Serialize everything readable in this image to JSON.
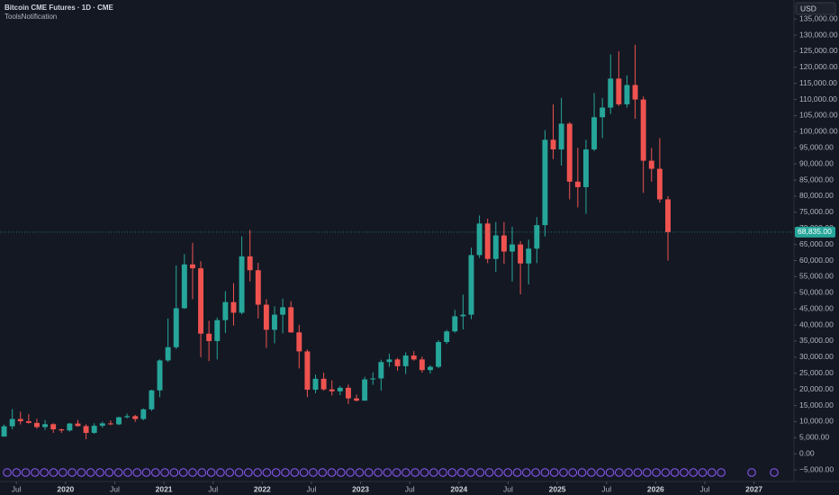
{
  "chart_data": {
    "type": "candlestick",
    "title": "Bitcoin CME Futures · 1D · CME",
    "subtitle": "ToolsNotification",
    "currency": "USD",
    "up_color": "#26a69a",
    "down_color": "#ef5350",
    "x": [
      "2019-05",
      "2019-06",
      "2019-07",
      "2019-08",
      "2019-09",
      "2019-10",
      "2019-11",
      "2019-12",
      "2020-01",
      "2020-02",
      "2020-03",
      "2020-04",
      "2020-05",
      "2020-06",
      "2020-07",
      "2020-08",
      "2020-09",
      "2020-10",
      "2020-11",
      "2020-12",
      "2021-01",
      "2021-02",
      "2021-03",
      "2021-04",
      "2021-05",
      "2021-06",
      "2021-07",
      "2021-08",
      "2021-09",
      "2021-10",
      "2021-11",
      "2021-12",
      "2022-01",
      "2022-02",
      "2022-03",
      "2022-04",
      "2022-05",
      "2022-06",
      "2022-07",
      "2022-08",
      "2022-09",
      "2022-10",
      "2022-11",
      "2022-12",
      "2023-01",
      "2023-02",
      "2023-03",
      "2023-04",
      "2023-05",
      "2023-06",
      "2023-07",
      "2023-08",
      "2023-09",
      "2023-10",
      "2023-11",
      "2023-12",
      "2024-01",
      "2024-02",
      "2024-03",
      "2024-04",
      "2024-05",
      "2024-06",
      "2024-07",
      "2024-08",
      "2024-09",
      "2024-10",
      "2024-11",
      "2024-12",
      "2025-01",
      "2025-02",
      "2025-03",
      "2025-04",
      "2025-05",
      "2025-06",
      "2025-07",
      "2025-08",
      "2025-09",
      "2025-10",
      "2025-11",
      "2025-12",
      "2026-01",
      "2026-02"
    ],
    "open": [
      5350,
      8550,
      10800,
      10100,
      9600,
      8300,
      9200,
      7600,
      7250,
      9400,
      8600,
      6500,
      8700,
      9450,
      9150,
      11350,
      11700,
      10800,
      13800,
      19700,
      29000,
      33100,
      45200,
      58800,
      57600,
      37300,
      35000,
      41500,
      47100,
      43800,
      61300,
      57000,
      46300,
      38500,
      43200,
      45500,
      37700,
      31800,
      19900,
      23300,
      20000,
      19400,
      20500,
      17200,
      16500,
      23100,
      23400,
      28500,
      29300,
      27200,
      30500,
      29300,
      26000,
      27000,
      34700,
      38000,
      42700,
      43200,
      61700,
      71500,
      60500,
      67800,
      62800,
      65000,
      59100,
      63700,
      71000,
      97500,
      94500,
      102500,
      84500,
      82800,
      94500,
      104500,
      107500,
      116500,
      108500,
      114500,
      110000,
      91000,
      88500,
      79000
    ],
    "high": [
      9100,
      13900,
      13100,
      12300,
      10900,
      10500,
      9500,
      7800,
      9600,
      10500,
      9200,
      9500,
      10000,
      10400,
      11500,
      12500,
      12100,
      14100,
      19900,
      29300,
      42000,
      58500,
      62000,
      65500,
      59800,
      41300,
      42300,
      50500,
      53000,
      67500,
      69500,
      59300,
      48000,
      45800,
      48200,
      47400,
      40000,
      32400,
      24600,
      25200,
      22800,
      21100,
      21500,
      18400,
      23900,
      25300,
      29200,
      31100,
      29800,
      31500,
      31900,
      30200,
      27500,
      35300,
      38500,
      44700,
      49400,
      64000,
      74000,
      73000,
      72000,
      72000,
      70500,
      66000,
      66500,
      73500,
      100500,
      108500,
      110500,
      103000,
      95000,
      97500,
      112000,
      110500,
      124000,
      125000,
      117500,
      127000,
      111000,
      95000,
      98000,
      80000
    ],
    "low": [
      5350,
      7600,
      9100,
      9400,
      7800,
      7400,
      6500,
      6500,
      6900,
      8500,
      4500,
      6200,
      8100,
      8900,
      8900,
      11000,
      9900,
      10400,
      13300,
      17600,
      28500,
      32500,
      45000,
      48000,
      30000,
      28800,
      29300,
      37500,
      39800,
      43300,
      53500,
      42000,
      32900,
      34300,
      37400,
      37600,
      26500,
      17600,
      18800,
      19600,
      18100,
      18200,
      15500,
      16300,
      16500,
      21400,
      19600,
      27000,
      25800,
      24800,
      28900,
      25200,
      24900,
      26600,
      34100,
      37600,
      38600,
      41800,
      60800,
      59200,
      56500,
      59000,
      53500,
      49500,
      52600,
      59200,
      67500,
      91500,
      89500,
      79000,
      76500,
      74500,
      94000,
      98000,
      105500,
      108000,
      107500,
      104000,
      81000,
      84500,
      78000,
      60000
    ],
    "close": [
      8550,
      10800,
      10100,
      9600,
      8300,
      9200,
      7600,
      7250,
      9400,
      8600,
      6500,
      8700,
      9450,
      9150,
      11350,
      11700,
      10800,
      13800,
      19700,
      29000,
      33100,
      45200,
      58800,
      57600,
      37300,
      35000,
      41500,
      47100,
      43800,
      61300,
      57000,
      46300,
      38500,
      43200,
      45500,
      37700,
      31800,
      19900,
      23300,
      20000,
      19400,
      20500,
      17200,
      16500,
      23100,
      23400,
      28500,
      29300,
      27200,
      30500,
      29300,
      26000,
      27000,
      34700,
      38000,
      42700,
      43200,
      61700,
      71500,
      60500,
      67800,
      62800,
      65000,
      59100,
      63700,
      71000,
      97500,
      94500,
      102500,
      84500,
      82800,
      94500,
      104500,
      107500,
      116500,
      108500,
      114500,
      110000,
      91000,
      88500,
      79000,
      68835
    ],
    "last_price": {
      "value": 68835,
      "label": "68,835.00"
    },
    "xlim": [
      "2019-05",
      "2027-05"
    ],
    "xticks": [
      {
        "value": "2019-07",
        "label": "Jul"
      },
      {
        "value": "2020-01",
        "label": "2020"
      },
      {
        "value": "2020-07",
        "label": "Jul"
      },
      {
        "value": "2021-01",
        "label": "2021"
      },
      {
        "value": "2021-07",
        "label": "Jul"
      },
      {
        "value": "2022-01",
        "label": "2022"
      },
      {
        "value": "2022-07",
        "label": "Jul"
      },
      {
        "value": "2023-01",
        "label": "2023"
      },
      {
        "value": "2023-07",
        "label": "Jul"
      },
      {
        "value": "2024-01",
        "label": "2024"
      },
      {
        "value": "2024-07",
        "label": "Jul"
      },
      {
        "value": "2025-01",
        "label": "2025"
      },
      {
        "value": "2025-07",
        "label": "Jul"
      },
      {
        "value": "2026-01",
        "label": "2026"
      },
      {
        "value": "2026-07",
        "label": "Jul"
      },
      {
        "value": "2027-01",
        "label": "2027"
      }
    ],
    "ylim": [
      -8600,
      140900
    ],
    "yticks": [
      {
        "value": -5000,
        "label": "−5,000.00"
      },
      {
        "value": 0,
        "label": "0.00"
      },
      {
        "value": 5000,
        "label": "5,000.00"
      },
      {
        "value": 10000,
        "label": "10,000.00"
      },
      {
        "value": 15000,
        "label": "15,000.00"
      },
      {
        "value": 20000,
        "label": "20,000.00"
      },
      {
        "value": 25000,
        "label": "25,000.00"
      },
      {
        "value": 30000,
        "label": "30,000.00"
      },
      {
        "value": 35000,
        "label": "35,000.00"
      },
      {
        "value": 40000,
        "label": "40,000.00"
      },
      {
        "value": 45000,
        "label": "45,000.00"
      },
      {
        "value": 50000,
        "label": "50,000.00"
      },
      {
        "value": 55000,
        "label": "55,000.00"
      },
      {
        "value": 60000,
        "label": "60,000.00"
      },
      {
        "value": 65000,
        "label": "65,000.00"
      },
      {
        "value": 70000,
        "label": "70,000.00"
      },
      {
        "value": 75000,
        "label": "75,000.00"
      },
      {
        "value": 80000,
        "label": "80,000.00"
      },
      {
        "value": 85000,
        "label": "85,000.00"
      },
      {
        "value": 90000,
        "label": "90,000.00"
      },
      {
        "value": 95000,
        "label": "95,000.00"
      },
      {
        "value": 100000,
        "label": "100,000.00"
      },
      {
        "value": 105000,
        "label": "105,000.00"
      },
      {
        "value": 110000,
        "label": "110,000.00"
      },
      {
        "value": 115000,
        "label": "115,000.00"
      },
      {
        "value": 120000,
        "label": "120,000.00"
      },
      {
        "value": 125000,
        "label": "125,000.00"
      },
      {
        "value": 130000,
        "label": "130,000.00"
      },
      {
        "value": 135000,
        "label": "135,000.00"
      }
    ]
  }
}
